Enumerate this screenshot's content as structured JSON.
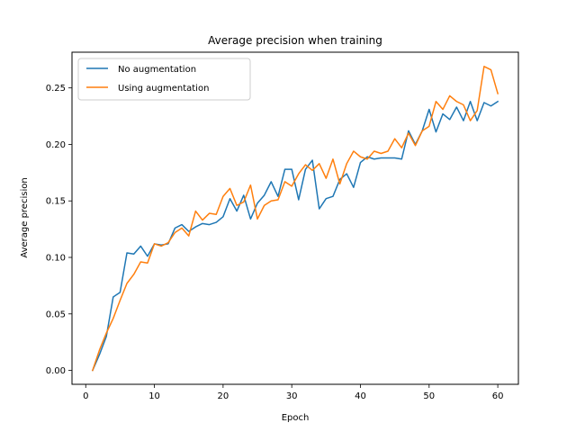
{
  "chart_data": {
    "type": "line",
    "title": "Average precision when training",
    "xlabel": "Epoch",
    "ylabel": "Average precision",
    "xlim": [
      -2,
      63
    ],
    "ylim": [
      -0.0123,
      0.2816
    ],
    "xticks": [
      0,
      10,
      20,
      30,
      40,
      50,
      60
    ],
    "xtick_labels": [
      "0",
      "10",
      "20",
      "30",
      "40",
      "50",
      "60"
    ],
    "yticks": [
      0.0,
      0.05,
      0.1,
      0.15,
      0.2,
      0.25
    ],
    "ytick_labels": [
      "0.00",
      "0.05",
      "0.10",
      "0.15",
      "0.20",
      "0.25"
    ],
    "grid": false,
    "legend_position": "upper-left",
    "x": [
      1,
      2,
      3,
      4,
      5,
      6,
      7,
      8,
      9,
      10,
      11,
      12,
      13,
      14,
      15,
      16,
      17,
      18,
      19,
      20,
      21,
      22,
      23,
      24,
      25,
      26,
      27,
      28,
      29,
      30,
      31,
      32,
      33,
      34,
      35,
      36,
      37,
      38,
      39,
      40,
      41,
      42,
      43,
      44,
      45,
      46,
      47,
      48,
      49,
      50,
      51,
      52,
      53,
      54,
      55,
      56,
      57,
      58,
      59,
      60
    ],
    "series": [
      {
        "name": "No augmentation",
        "color": "#1f77b4",
        "values": [
          0.0,
          0.014,
          0.03,
          0.065,
          0.069,
          0.104,
          0.103,
          0.11,
          0.101,
          0.112,
          0.111,
          0.112,
          0.126,
          0.129,
          0.123,
          0.127,
          0.13,
          0.129,
          0.131,
          0.136,
          0.152,
          0.141,
          0.155,
          0.134,
          0.148,
          0.155,
          0.167,
          0.154,
          0.178,
          0.178,
          0.151,
          0.178,
          0.186,
          0.143,
          0.152,
          0.154,
          0.169,
          0.174,
          0.162,
          0.184,
          0.189,
          0.187,
          0.188,
          0.188,
          0.188,
          0.187,
          0.212,
          0.2,
          0.212,
          0.231,
          0.211,
          0.227,
          0.222,
          0.233,
          0.221,
          0.238,
          0.221,
          0.237,
          0.234,
          0.238
        ]
      },
      {
        "name": "Using augmentation",
        "color": "#ff7f0e",
        "values": [
          0.0,
          0.018,
          0.033,
          0.046,
          0.062,
          0.077,
          0.085,
          0.096,
          0.095,
          0.112,
          0.11,
          0.113,
          0.122,
          0.126,
          0.119,
          0.141,
          0.133,
          0.139,
          0.138,
          0.154,
          0.161,
          0.146,
          0.149,
          0.164,
          0.134,
          0.146,
          0.15,
          0.151,
          0.167,
          0.163,
          0.174,
          0.182,
          0.177,
          0.183,
          0.17,
          0.187,
          0.165,
          0.183,
          0.194,
          0.189,
          0.187,
          0.194,
          0.192,
          0.194,
          0.205,
          0.197,
          0.21,
          0.199,
          0.212,
          0.216,
          0.238,
          0.231,
          0.243,
          0.238,
          0.235,
          0.221,
          0.23,
          0.269,
          0.266,
          0.245
        ]
      }
    ]
  }
}
